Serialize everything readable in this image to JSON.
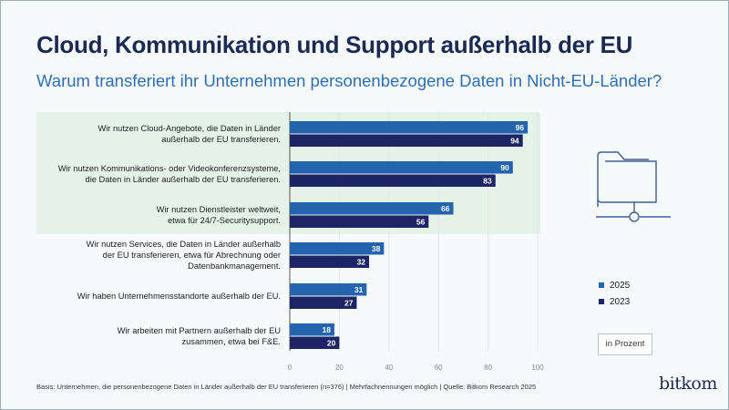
{
  "header": {
    "title": "Cloud, Kommunikation und Support außerhalb der EU",
    "subtitle": "Warum transferiert ihr Unternehmen personenbezogene Daten in Nicht-EU-Länder?"
  },
  "chart_data": {
    "type": "bar",
    "orientation": "horizontal",
    "categories": [
      [
        "Wir nutzen Cloud-Angebote, die Daten in Länder",
        "außerhalb der EU transferieren."
      ],
      [
        "Wir nutzen Kommunikations- oder Videokonferenzsysteme,",
        "die Daten in Länder außerhalb der EU transferieren."
      ],
      [
        "Wir nutzen Dienstleister weltweit,",
        "etwa für 24/7-Securitysupport."
      ],
      [
        "Wir nutzen Services, die Daten in Länder außerhalb",
        "der EU transferieren, etwa für Abrechnung oder",
        "Datenbankmanagement."
      ],
      [
        "Wir haben Unternehmensstandorte außerhalb der EU."
      ],
      [
        "Wir arbeiten mit Partnern außerhalb der EU",
        "zusammen, etwa bei F&E."
      ]
    ],
    "series": [
      {
        "name": "2025",
        "color": "#2463ae",
        "values": [
          96,
          90,
          66,
          38,
          31,
          18
        ]
      },
      {
        "name": "2023",
        "color": "#1e2566",
        "values": [
          94,
          83,
          56,
          32,
          27,
          20
        ]
      }
    ],
    "highlighted_categories": [
      0,
      1,
      2
    ],
    "xlim": [
      0,
      100
    ],
    "xticks": [
      0,
      20,
      40,
      60,
      80,
      100
    ],
    "grid": true,
    "unit_label": "in Prozent",
    "legend": "right"
  },
  "footnote": "Basis: Unternehmen, die personenbezogene Daten in Länder außerhalb der EU transferieren (n=376) | Mehrfachnennungen möglich | Quelle: Bitkom Research 2025",
  "logo": "bitkom",
  "icon": "folder-network-icon"
}
